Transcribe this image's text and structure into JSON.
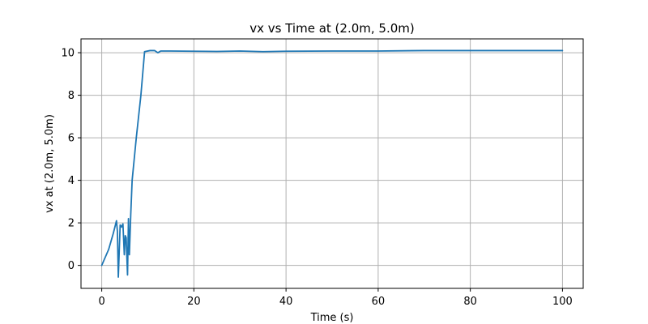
{
  "chart_data": {
    "type": "line",
    "title": "vx vs Time at (2.0m, 5.0m)",
    "xlabel": "Time (s)",
    "ylabel": "vx at (2.0m, 5.0m)",
    "xlim": [
      -4.5,
      104.5
    ],
    "ylim": [
      -1.08,
      10.65
    ],
    "xticks": [
      0,
      20,
      40,
      60,
      80,
      100
    ],
    "yticks": [
      0,
      2,
      4,
      6,
      8,
      10
    ],
    "xtick_labels": [
      "0",
      "20",
      "40",
      "60",
      "80",
      "100"
    ],
    "ytick_labels": [
      "0",
      "2",
      "4",
      "6",
      "8",
      "10"
    ],
    "grid": true,
    "legend": "none",
    "series": [
      {
        "color": "#1f77b4",
        "x": [
          0,
          1.5,
          2.5,
          3.2,
          3.4,
          3.6,
          4.0,
          4.3,
          4.6,
          4.9,
          5.1,
          5.3,
          5.6,
          5.8,
          6.0,
          6.3,
          6.6,
          7.5,
          8.5,
          9.3,
          10.5,
          11.5,
          12.2,
          12.8,
          15,
          20,
          25,
          30,
          35,
          40,
          50,
          60,
          70,
          80,
          90,
          100
        ],
        "y": [
          0,
          0.75,
          1.5,
          2.1,
          1.6,
          -0.55,
          1.9,
          1.8,
          1.95,
          0.5,
          1.4,
          1.3,
          -0.45,
          2.2,
          0.5,
          2.4,
          4.0,
          6.0,
          8.0,
          10.05,
          10.1,
          10.1,
          10.0,
          10.08,
          10.08,
          10.07,
          10.06,
          10.08,
          10.05,
          10.07,
          10.08,
          10.08,
          10.1,
          10.1,
          10.1,
          10.1
        ]
      }
    ]
  }
}
